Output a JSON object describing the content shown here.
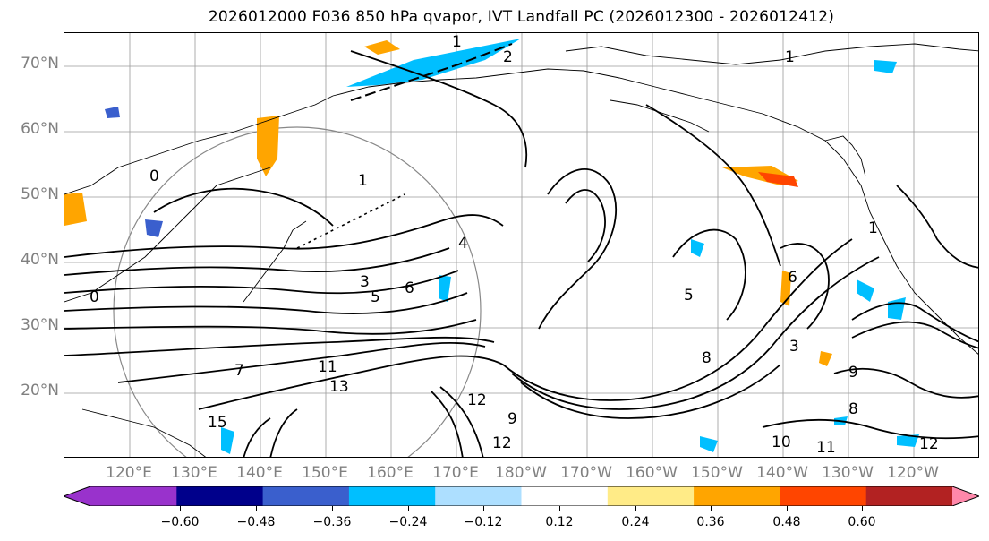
{
  "title": "2026012000 F036 850 hPa qvapor, IVT Landfall PC (2026012300 - 2026012412)",
  "lat_labels": [
    "70°N",
    "60°N",
    "50°N",
    "40°N",
    "30°N",
    "20°N"
  ],
  "lon_labels": [
    "120°E",
    "130°E",
    "140°E",
    "150°E",
    "160°E",
    "170°E",
    "180°W",
    "170°W",
    "160°W",
    "150°W",
    "140°W",
    "130°W",
    "120°W"
  ],
  "colorbar": {
    "colors": [
      "#9932CC",
      "#00008B",
      "#3A5FCD",
      "#00BFFF",
      "#ADDFFF",
      "#FFFFFF",
      "#FFEB87",
      "#FFA500",
      "#FF4500",
      "#B22222",
      "#FF88AA",
      "#FF88AA"
    ],
    "tick_labels": [
      "−0.60",
      "−0.48",
      "−0.36",
      "−0.24",
      "−0.12",
      "0.12",
      "0.24",
      "0.36",
      "0.48",
      "0.60"
    ]
  },
  "contour_labels": [
    "1",
    "2",
    "1",
    "0",
    "1",
    "3",
    "5",
    "6",
    "7",
    "11",
    "13",
    "15",
    "12",
    "12",
    "9",
    "10",
    "11",
    "12",
    "8",
    "5",
    "3",
    "6",
    "4",
    "9",
    "8",
    "0",
    "1"
  ],
  "colors": {
    "grid": "#808080",
    "coast": "#000000",
    "contour": "#000000",
    "neg": "#00BFFF",
    "pos": "#FFA500"
  }
}
